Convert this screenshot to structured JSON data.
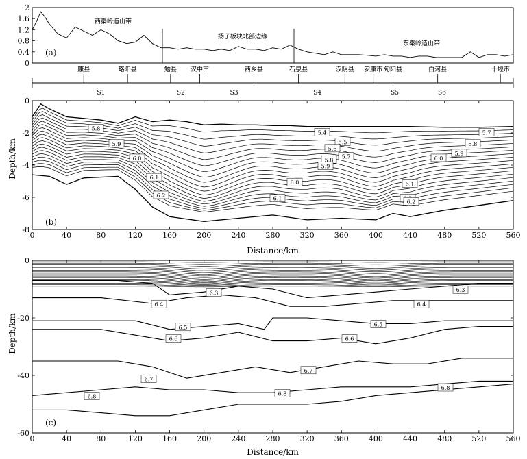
{
  "chart_data": [
    {
      "type": "line",
      "panel_label": "(a)",
      "ylim": [
        0,
        2
      ],
      "yticks": [
        "0",
        "0.4",
        "0.8",
        "1.2",
        "1.6",
        "2"
      ],
      "series": [
        {
          "x": [
            0,
            5,
            10,
            15,
            20,
            30,
            40,
            50,
            60,
            70,
            80,
            90,
            100,
            110,
            120,
            130,
            140,
            150,
            160,
            170,
            180,
            190,
            200,
            210,
            220,
            230,
            240,
            250,
            260,
            270,
            280,
            290,
            300,
            310,
            320,
            330,
            340,
            350,
            360,
            370,
            380,
            390,
            400,
            410,
            420,
            430,
            440,
            450,
            460,
            470,
            480,
            490,
            500,
            510,
            520,
            530,
            540,
            550,
            560
          ],
          "y": [
            1.2,
            1.5,
            1.85,
            1.65,
            1.4,
            1.05,
            0.9,
            1.3,
            1.15,
            1.0,
            1.2,
            1.05,
            0.8,
            0.7,
            0.75,
            1.0,
            0.7,
            0.55,
            0.55,
            0.5,
            0.55,
            0.5,
            0.5,
            0.45,
            0.5,
            0.45,
            0.6,
            0.5,
            0.5,
            0.45,
            0.55,
            0.5,
            0.65,
            0.5,
            0.4,
            0.35,
            0.3,
            0.4,
            0.3,
            0.3,
            0.3,
            0.28,
            0.25,
            0.3,
            0.25,
            0.25,
            0.2,
            0.25,
            0.25,
            0.2,
            0.2,
            0.2,
            0.2,
            0.4,
            0.2,
            0.3,
            0.3,
            0.25,
            0.3
          ]
        }
      ],
      "region_labels": [
        "西秦岭造山带",
        "扬子板块北部边缘",
        "东秦岭造山带"
      ],
      "region_boundaries_x": [
        147,
        300
      ]
    },
    {
      "type": "line",
      "panel_label": "(b)",
      "ylabel": "Depth/km",
      "xlabel": "Distance/km",
      "xlim": [
        0,
        560
      ],
      "ylim": [
        -8,
        0
      ],
      "xticks": [
        "0",
        "40",
        "80",
        "120",
        "160",
        "200",
        "240",
        "280",
        "320",
        "360",
        "400",
        "440",
        "480",
        "520",
        "560"
      ],
      "yticks": [
        "0",
        "-2",
        "-4",
        "-6",
        "-8"
      ],
      "velocity_labels": [
        "5.8",
        "5.9",
        "6.0",
        "6.1",
        "6.2",
        "5.4",
        "5.5",
        "5.6",
        "5.8",
        "5.7",
        "5.9",
        "6.0",
        "6.1",
        "6.2",
        "5.7",
        "5.8",
        "5.9",
        "6.0",
        "6.1",
        "6.2"
      ]
    },
    {
      "type": "line",
      "panel_label": "(c)",
      "ylabel": "Depth/km",
      "xlabel": "Distance/km",
      "xlim": [
        0,
        560
      ],
      "ylim": [
        -60,
        0
      ],
      "xticks": [
        "0",
        "40",
        "80",
        "120",
        "160",
        "200",
        "240",
        "280",
        "320",
        "360",
        "400",
        "440",
        "480",
        "520",
        "560"
      ],
      "yticks": [
        "0",
        "-20",
        "-40",
        "-60"
      ],
      "velocity_labels": [
        "6.3",
        "6.3",
        "6.4",
        "6.4",
        "6.5",
        "6.5",
        "6.6",
        "6.6",
        "6.7",
        "6.7",
        "6.8",
        "6.8",
        "6.8"
      ]
    }
  ],
  "profile": {
    "towns": [
      "康县",
      "略阳县",
      "勉县",
      "汉中市",
      "西乡县",
      "石泉县",
      "汉阴县",
      "安康市",
      "旬阳县",
      "白河县",
      "十堰市"
    ],
    "shot_points": [
      "S1",
      "S2",
      "S3",
      "S4",
      "S5",
      "S6"
    ]
  }
}
